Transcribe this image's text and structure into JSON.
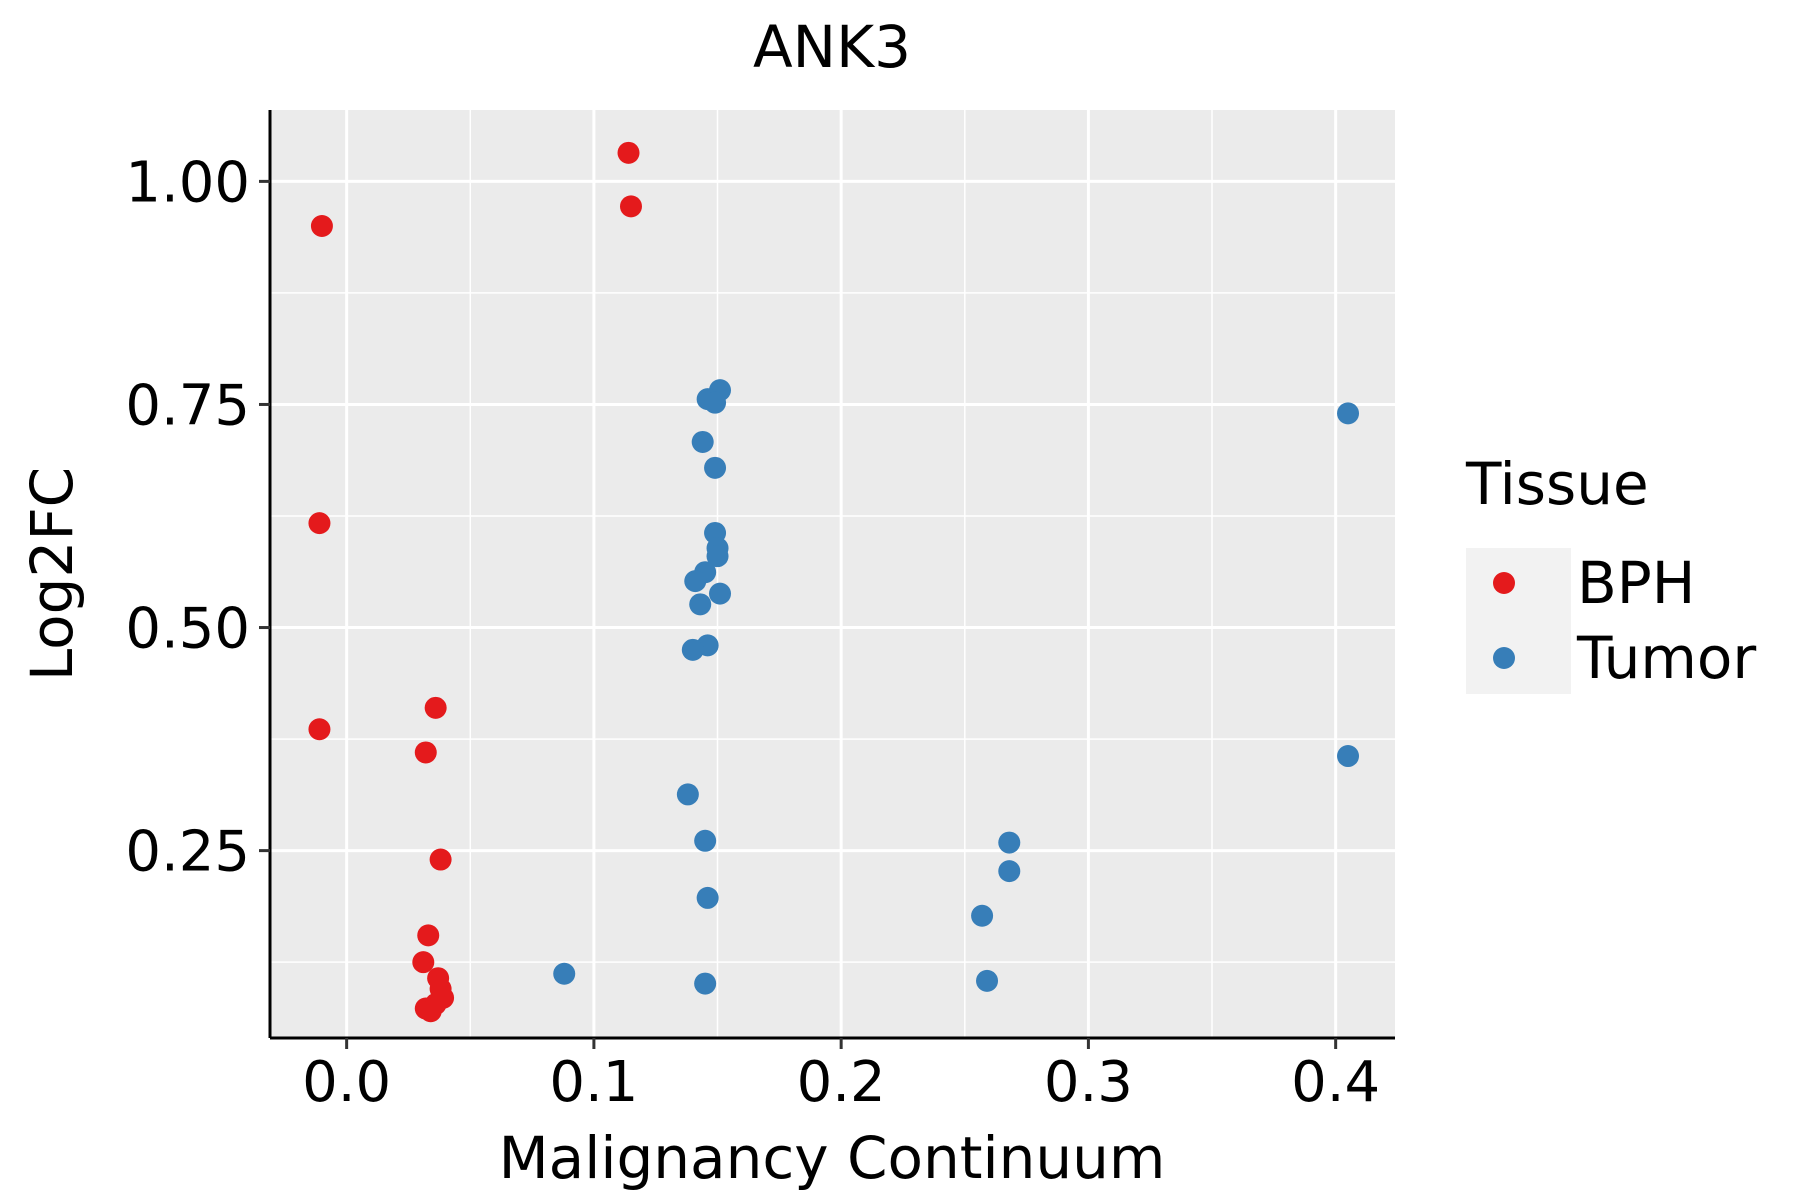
{
  "chart_data": {
    "type": "scatter",
    "title": "ANK3",
    "xlabel": "Malignancy Continuum",
    "ylabel": "Log2FC",
    "xlim": [
      -0.031,
      0.424
    ],
    "ylim": [
      0.04,
      1.08
    ],
    "x_ticks": [
      0.0,
      0.1,
      0.2,
      0.3,
      0.4
    ],
    "x_tick_labels": [
      "0.0",
      "0.1",
      "0.2",
      "0.3",
      "0.4"
    ],
    "y_ticks": [
      0.25,
      0.5,
      0.75,
      1.0
    ],
    "y_tick_labels": [
      "0.25",
      "0.50",
      "0.75",
      "1.00"
    ],
    "grid": true,
    "panel_background": "#EBEBEB",
    "legend": {
      "title": "Tissue",
      "position": "right"
    },
    "series": [
      {
        "name": "BPH",
        "color": "#E41A1C",
        "points": [
          {
            "x": -0.01,
            "y": 0.95
          },
          {
            "x": -0.011,
            "y": 0.617
          },
          {
            "x": -0.011,
            "y": 0.386
          },
          {
            "x": 0.114,
            "y": 1.032
          },
          {
            "x": 0.115,
            "y": 0.972
          },
          {
            "x": 0.036,
            "y": 0.41
          },
          {
            "x": 0.032,
            "y": 0.36
          },
          {
            "x": 0.038,
            "y": 0.24
          },
          {
            "x": 0.033,
            "y": 0.155
          },
          {
            "x": 0.031,
            "y": 0.125
          },
          {
            "x": 0.037,
            "y": 0.107
          },
          {
            "x": 0.038,
            "y": 0.095
          },
          {
            "x": 0.039,
            "y": 0.085
          },
          {
            "x": 0.036,
            "y": 0.078
          },
          {
            "x": 0.032,
            "y": 0.073
          },
          {
            "x": 0.034,
            "y": 0.07
          }
        ]
      },
      {
        "name": "Tumor",
        "color": "#377EB8",
        "points": [
          {
            "x": 0.151,
            "y": 0.766
          },
          {
            "x": 0.146,
            "y": 0.756
          },
          {
            "x": 0.149,
            "y": 0.752
          },
          {
            "x": 0.144,
            "y": 0.708
          },
          {
            "x": 0.149,
            "y": 0.679
          },
          {
            "x": 0.149,
            "y": 0.606
          },
          {
            "x": 0.15,
            "y": 0.589
          },
          {
            "x": 0.15,
            "y": 0.58
          },
          {
            "x": 0.145,
            "y": 0.562
          },
          {
            "x": 0.141,
            "y": 0.552
          },
          {
            "x": 0.151,
            "y": 0.538
          },
          {
            "x": 0.143,
            "y": 0.526
          },
          {
            "x": 0.146,
            "y": 0.48
          },
          {
            "x": 0.14,
            "y": 0.475
          },
          {
            "x": 0.138,
            "y": 0.313
          },
          {
            "x": 0.145,
            "y": 0.261
          },
          {
            "x": 0.146,
            "y": 0.197
          },
          {
            "x": 0.088,
            "y": 0.112
          },
          {
            "x": 0.145,
            "y": 0.101
          },
          {
            "x": 0.257,
            "y": 0.177
          },
          {
            "x": 0.268,
            "y": 0.259
          },
          {
            "x": 0.268,
            "y": 0.227
          },
          {
            "x": 0.259,
            "y": 0.104
          },
          {
            "x": 0.405,
            "y": 0.74
          },
          {
            "x": 0.405,
            "y": 0.356
          }
        ]
      }
    ]
  }
}
